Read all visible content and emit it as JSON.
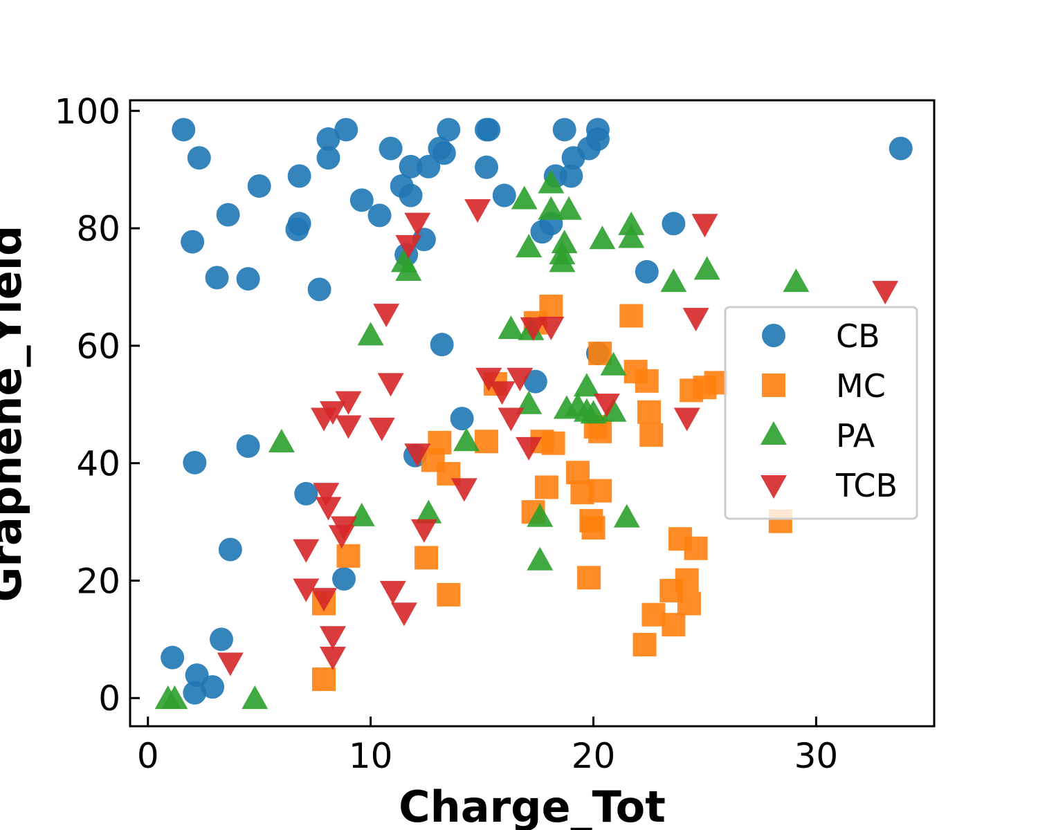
{
  "chart_data": {
    "type": "scatter",
    "title": "",
    "xlabel": "Charge_Tot",
    "ylabel": "Graphene_Yield",
    "xlim": [
      -0.8,
      35.3
    ],
    "ylim": [
      -4.8,
      101.8
    ],
    "xticks": [
      0,
      10,
      20,
      30
    ],
    "yticks": [
      0,
      20,
      40,
      60,
      80,
      100
    ],
    "xtick_labels": [
      "0",
      "10",
      "20",
      "30"
    ],
    "ytick_labels": [
      "0",
      "20",
      "40",
      "60",
      "80",
      "100"
    ],
    "grid": false,
    "legend_position": "center-right",
    "series": [
      {
        "name": "CB",
        "marker": "circle",
        "color": "#1f77b4",
        "points": [
          [
            1.6,
            96.8
          ],
          [
            2.3,
            92
          ],
          [
            2.0,
            77.7
          ],
          [
            3.1,
            71.6
          ],
          [
            3.6,
            82.3
          ],
          [
            4.5,
            71.4
          ],
          [
            5.0,
            87.2
          ],
          [
            6.7,
            79.8
          ],
          [
            6.8,
            80.8
          ],
          [
            6.8,
            88.9
          ],
          [
            7.7,
            69.6
          ],
          [
            8.1,
            95.2
          ],
          [
            8.1,
            92
          ],
          [
            8.9,
            96.8
          ],
          [
            9.6,
            84.8
          ],
          [
            10.4,
            82.2
          ],
          [
            10.9,
            93.6
          ],
          [
            11.4,
            87.2
          ],
          [
            11.8,
            90.5
          ],
          [
            11.8,
            85.6
          ],
          [
            12.6,
            90.5
          ],
          [
            13.1,
            93.6
          ],
          [
            13.3,
            92.8
          ],
          [
            13.5,
            96.8
          ],
          [
            15.2,
            96.8
          ],
          [
            15.3,
            96.8
          ],
          [
            15.2,
            90.4
          ],
          [
            16.0,
            85.6
          ],
          [
            17.7,
            79.4
          ],
          [
            18.1,
            80.8
          ],
          [
            18.3,
            88.9
          ],
          [
            18.7,
            96.8
          ],
          [
            19.1,
            92
          ],
          [
            19.0,
            88.9
          ],
          [
            19.8,
            93.6
          ],
          [
            20.2,
            95.2
          ],
          [
            20.2,
            96.8
          ],
          [
            22.4,
            72.6
          ],
          [
            23.6,
            80.8
          ],
          [
            33.8,
            93.6
          ],
          [
            11.6,
            75.5
          ],
          [
            12.4,
            78.1
          ],
          [
            13.2,
            60.2
          ],
          [
            17.4,
            53.9
          ],
          [
            14.1,
            47.6
          ],
          [
            12.0,
            41.3
          ],
          [
            4.5,
            42.9
          ],
          [
            2.1,
            40.1
          ],
          [
            7.1,
            34.8
          ],
          [
            3.7,
            25.3
          ],
          [
            8.8,
            20.3
          ],
          [
            3.3,
            10
          ],
          [
            1.1,
            6.9
          ],
          [
            2.2,
            3.9
          ],
          [
            2.9,
            1.9
          ],
          [
            2.1,
            0.9
          ],
          [
            20.2,
            58.7
          ]
        ]
      },
      {
        "name": "MC",
        "marker": "square",
        "color": "#ff7f0e",
        "points": [
          [
            7.9,
            3.2
          ],
          [
            7.9,
            16.1
          ],
          [
            9.0,
            24.2
          ],
          [
            12.5,
            23.9
          ],
          [
            13.5,
            17.6
          ],
          [
            12.8,
            40.5
          ],
          [
            13.1,
            43.5
          ],
          [
            13.5,
            38.2
          ],
          [
            15.2,
            43.7
          ],
          [
            15.6,
            53.5
          ],
          [
            17.3,
            31.7
          ],
          [
            17.7,
            43.7
          ],
          [
            17.9,
            35.9
          ],
          [
            18.2,
            43.4
          ],
          [
            18.1,
            66.7
          ],
          [
            17.4,
            63.9
          ],
          [
            19.3,
            38.4
          ],
          [
            19.5,
            35.0
          ],
          [
            19.9,
            30.2
          ],
          [
            20.0,
            29.0
          ],
          [
            20.1,
            46.2
          ],
          [
            20.3,
            45.4
          ],
          [
            20.3,
            35.3
          ],
          [
            19.8,
            20.5
          ],
          [
            20.3,
            58.7
          ],
          [
            21.7,
            65.1
          ],
          [
            21.9,
            55.6
          ],
          [
            22.4,
            54.0
          ],
          [
            22.5,
            48.7
          ],
          [
            22.6,
            44.8
          ],
          [
            22.3,
            9.1
          ],
          [
            22.7,
            14.2
          ],
          [
            23.5,
            18.3
          ],
          [
            23.6,
            12.5
          ],
          [
            23.9,
            27.1
          ],
          [
            24.2,
            20.1
          ],
          [
            24.3,
            16.1
          ],
          [
            24.6,
            25.5
          ],
          [
            24.4,
            52.4
          ],
          [
            25.0,
            52.9
          ],
          [
            25.5,
            53.7
          ],
          [
            28.4,
            30.1
          ]
        ]
      },
      {
        "name": "PA",
        "marker": "triangle-up",
        "color": "#2ca02c",
        "points": [
          [
            0.9,
            -0.2
          ],
          [
            1.2,
            -0.2
          ],
          [
            4.8,
            -0.2
          ],
          [
            6.0,
            43.5
          ],
          [
            9.6,
            30.9
          ],
          [
            10.0,
            61.7
          ],
          [
            11.5,
            74.2
          ],
          [
            11.7,
            72.7
          ],
          [
            12.6,
            31.4
          ],
          [
            14.3,
            43.7
          ],
          [
            16.3,
            62.8
          ],
          [
            16.9,
            84.9
          ],
          [
            17.2,
            62.6
          ],
          [
            17.1,
            50.0
          ],
          [
            17.1,
            76.7
          ],
          [
            17.6,
            30.8
          ],
          [
            17.6,
            23.4
          ],
          [
            18.1,
            87.6
          ],
          [
            18.1,
            83.1
          ],
          [
            18.6,
            74.2
          ],
          [
            18.6,
            75.5
          ],
          [
            18.7,
            77.4
          ],
          [
            18.8,
            49.2
          ],
          [
            18.9,
            83.1
          ],
          [
            19.3,
            49.6
          ],
          [
            19.7,
            53.0
          ],
          [
            19.7,
            48.7
          ],
          [
            20.0,
            48.4
          ],
          [
            20.4,
            78.1
          ],
          [
            20.9,
            56.6
          ],
          [
            20.9,
            48.7
          ],
          [
            21.5,
            30.7
          ],
          [
            21.7,
            80.5
          ],
          [
            21.7,
            78.3
          ],
          [
            23.6,
            70.8
          ],
          [
            25.1,
            72.9
          ],
          [
            29.1,
            70.8
          ]
        ]
      },
      {
        "name": "TCB",
        "marker": "triangle-down",
        "color": "#d62728",
        "points": [
          [
            3.7,
            6.1
          ],
          [
            7.1,
            25.4
          ],
          [
            7.1,
            18.7
          ],
          [
            7.9,
            17.1
          ],
          [
            7.9,
            47.8
          ],
          [
            8.0,
            35.0
          ],
          [
            8.1,
            32.6
          ],
          [
            8.3,
            48.9
          ],
          [
            8.3,
            10.6
          ],
          [
            8.3,
            7.1
          ],
          [
            8.7,
            27.8
          ],
          [
            8.8,
            29.3
          ],
          [
            9.0,
            50.6
          ],
          [
            9.0,
            46.5
          ],
          [
            10.5,
            46.1
          ],
          [
            10.7,
            65.5
          ],
          [
            10.9,
            53.7
          ],
          [
            11.0,
            18.3
          ],
          [
            11.5,
            14.6
          ],
          [
            11.7,
            77.2
          ],
          [
            12.1,
            41.7
          ],
          [
            12.1,
            81.0
          ],
          [
            12.4,
            28.8
          ],
          [
            14.2,
            35.8
          ],
          [
            14.8,
            83.3
          ],
          [
            15.3,
            54.6
          ],
          [
            15.9,
            52.3
          ],
          [
            16.3,
            47.8
          ],
          [
            16.7,
            54.6
          ],
          [
            17.1,
            42.8
          ],
          [
            17.3,
            63.2
          ],
          [
            18.1,
            63.3
          ],
          [
            20.6,
            50.2
          ],
          [
            24.2,
            47.8
          ],
          [
            24.6,
            64.8
          ],
          [
            25.0,
            80.8
          ],
          [
            33.1,
            69.4
          ]
        ]
      }
    ]
  }
}
